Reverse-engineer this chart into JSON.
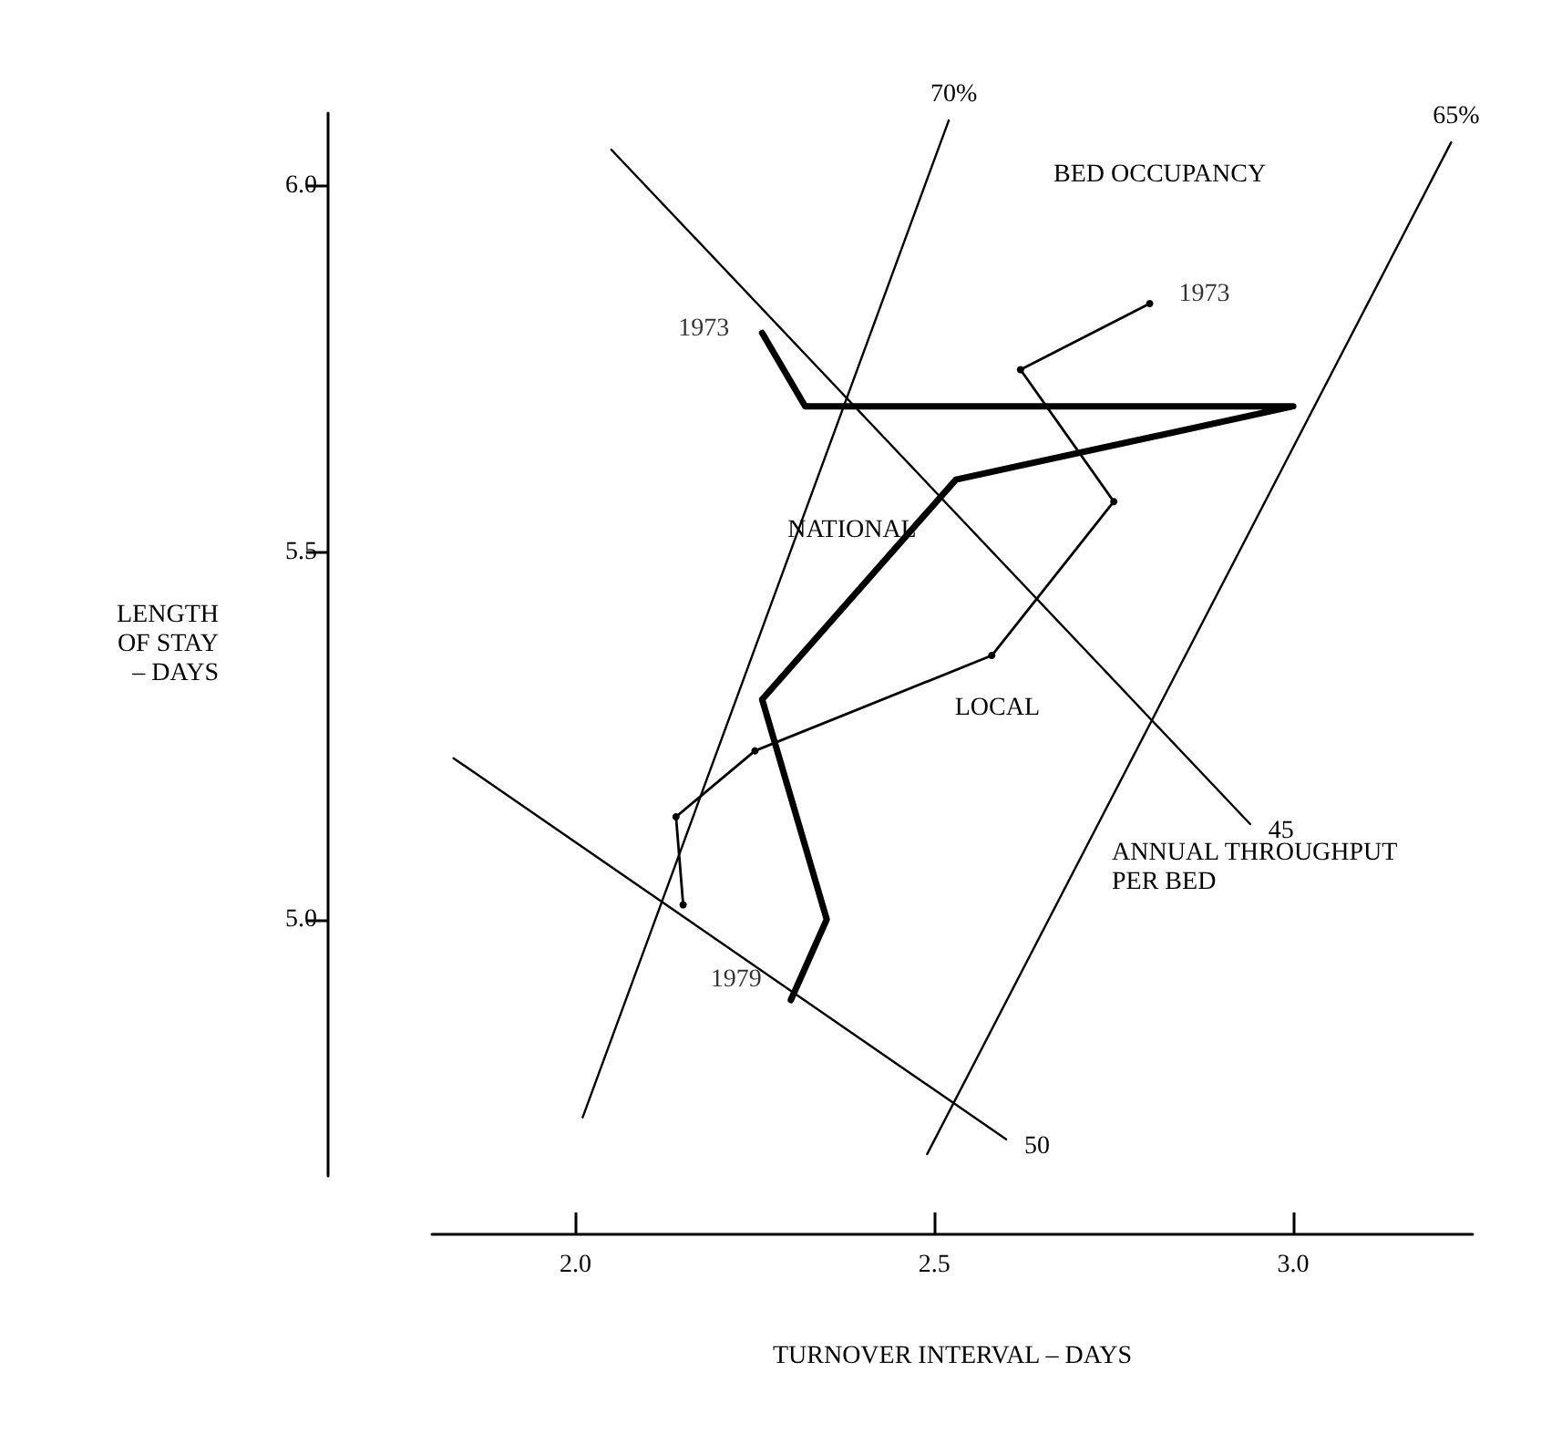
{
  "chart_data": {
    "type": "line",
    "xlabel": "TURNOVER INTERVAL – DAYS",
    "ylabel": "LENGTH\nOF STAY\n– DAYS",
    "xlim": [
      1.8,
      3.25
    ],
    "ylim": [
      4.65,
      6.1
    ],
    "xticks": [
      {
        "value": 2,
        "label": "2.0"
      },
      2.5,
      {
        "value": 3,
        "label": "3.0"
      }
    ],
    "yticks": [
      {
        "value": 5,
        "label": "5.0"
      },
      5.5,
      {
        "value": 6,
        "label": "6.0"
      }
    ],
    "grid": false,
    "legend": false,
    "line_style": "solid",
    "series": [
      {
        "name": "NATIONAL",
        "color": "#000000",
        "marker": "none",
        "x": [
          2.26,
          2.32,
          3.0,
          2.53,
          2.26,
          2.35,
          2.3
        ],
        "values": [
          5.8,
          5.7,
          5.7,
          5.6,
          5.3,
          5.0,
          4.89
        ]
      },
      {
        "name": "LOCAL",
        "color": "#000000",
        "marker": "circle",
        "x": [
          2.8,
          2.62,
          2.75,
          2.58,
          2.25,
          2.14,
          2.15
        ],
        "values": [
          5.84,
          5.75,
          5.57,
          5.36,
          5.23,
          5.14,
          5.02
        ]
      },
      {
        "name": "70%",
        "color": "#000000",
        "marker": "none",
        "x": [
          2.01,
          2.52
        ],
        "values": [
          4.73,
          6.09
        ]
      },
      {
        "name": "65%",
        "color": "#000000",
        "marker": "none",
        "x": [
          2.49,
          3.22
        ],
        "values": [
          4.68,
          6.06
        ]
      },
      {
        "name": "45",
        "color": "#000000",
        "marker": "none",
        "x": [
          2.05,
          2.94
        ],
        "values": [
          6.05,
          5.13
        ]
      },
      {
        "name": "50",
        "color": "#000000",
        "marker": "none",
        "x": [
          1.83,
          2.6
        ],
        "values": [
          5.22,
          4.7
        ]
      }
    ],
    "annotations": [
      {
        "text": "1973",
        "x": 2.26,
        "y": 5.8
      },
      {
        "text": "1973",
        "x": 2.8,
        "y": 5.84
      },
      {
        "text": "1979",
        "x": 2.3,
        "y": 4.89
      },
      "BED OCCUPANCY",
      "ANNUAL THROUGHPUT\nPER BED"
    ]
  }
}
